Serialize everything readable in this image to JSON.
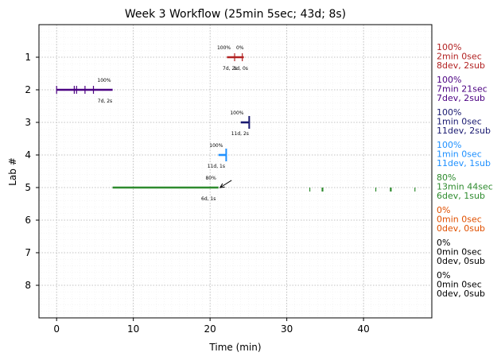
{
  "chart_data": {
    "type": "timeline",
    "title": "Week 3 Workflow (25min 5sec; 43d; 8s)",
    "xlabel": "Time (min)",
    "ylabel": "Lab #",
    "xlim": [
      -2.3,
      48.9
    ],
    "ylim": [
      9,
      0
    ],
    "x_ticks": [
      0,
      10,
      20,
      30,
      40
    ],
    "y_ticks": [
      1,
      2,
      3,
      4,
      5,
      6,
      7,
      8
    ],
    "grid": true,
    "labs": [
      {
        "lab": 1,
        "color": "#b22222",
        "bar": [
          22.2,
          24.4
        ],
        "marks": [
          23.2,
          24.2
        ],
        "top_labels": [
          {
            "x": 21.8,
            "text": "100%"
          },
          {
            "x": 23.9,
            "text": "0%"
          }
        ],
        "bottom_labels": [
          {
            "x": 22.6,
            "text": "7d, 2s"
          },
          {
            "x": 24.0,
            "text": "1d, 0s"
          }
        ],
        "summary": [
          "100%",
          "2min 0sec",
          "8dev, 2sub"
        ]
      },
      {
        "lab": 2,
        "color": "#4b0082",
        "bar": [
          0.0,
          7.3
        ],
        "marks": [
          0.0,
          2.3,
          2.6,
          3.7,
          4.8
        ],
        "top_labels": [
          {
            "x": 6.2,
            "text": "100%"
          }
        ],
        "bottom_labels": [
          {
            "x": 6.3,
            "text": "7d, 2s"
          }
        ],
        "summary": [
          "100%",
          "7min 21sec",
          "7dev, 2sub"
        ]
      },
      {
        "lab": 3,
        "color": "#191970",
        "bar": [
          24.0,
          25.1
        ],
        "marks": [
          25.1
        ],
        "top_labels": [
          {
            "x": 23.5,
            "text": "100%"
          }
        ],
        "bottom_labels": [
          {
            "x": 23.9,
            "text": "11d, 2s"
          }
        ],
        "summary": [
          "100%",
          "1min 0sec",
          "11dev, 2sub"
        ]
      },
      {
        "lab": 4,
        "color": "#1e90ff",
        "bar": [
          21.1,
          22.1
        ],
        "marks": [
          22.1
        ],
        "top_labels": [
          {
            "x": 20.8,
            "text": "100%"
          }
        ],
        "bottom_labels": [
          {
            "x": 20.8,
            "text": "11d, 1s"
          }
        ],
        "summary": [
          "100%",
          "1min 0sec",
          "11dev, 1sub"
        ]
      },
      {
        "lab": 5,
        "color": "#2e8b2e",
        "bar": [
          7.3,
          21.1
        ],
        "marks": [
          33.0,
          34.6,
          34.7,
          41.6,
          43.5,
          43.6,
          46.7
        ],
        "top_labels": [
          {
            "x": 20.1,
            "text": "80%"
          }
        ],
        "bottom_labels": [
          {
            "x": 19.8,
            "text": "6d, 1s"
          }
        ],
        "summary": [
          "80%",
          "13min 44sec",
          "6dev, 1sub"
        ]
      },
      {
        "lab": 6,
        "color": "#e05000",
        "summary": [
          "0%",
          "0min 0sec",
          "0dev, 0sub"
        ]
      },
      {
        "lab": 7,
        "color": "#000000",
        "summary": [
          "0%",
          "0min 0sec",
          "0dev, 0sub"
        ]
      },
      {
        "lab": 8,
        "color": "#000000",
        "summary": [
          "0%",
          "0min 0sec",
          "0dev, 0sub"
        ]
      }
    ],
    "annotation": {
      "type": "arrow",
      "from": [
        22.8,
        4.78
      ],
      "to": [
        21.3,
        5.0
      ]
    }
  }
}
